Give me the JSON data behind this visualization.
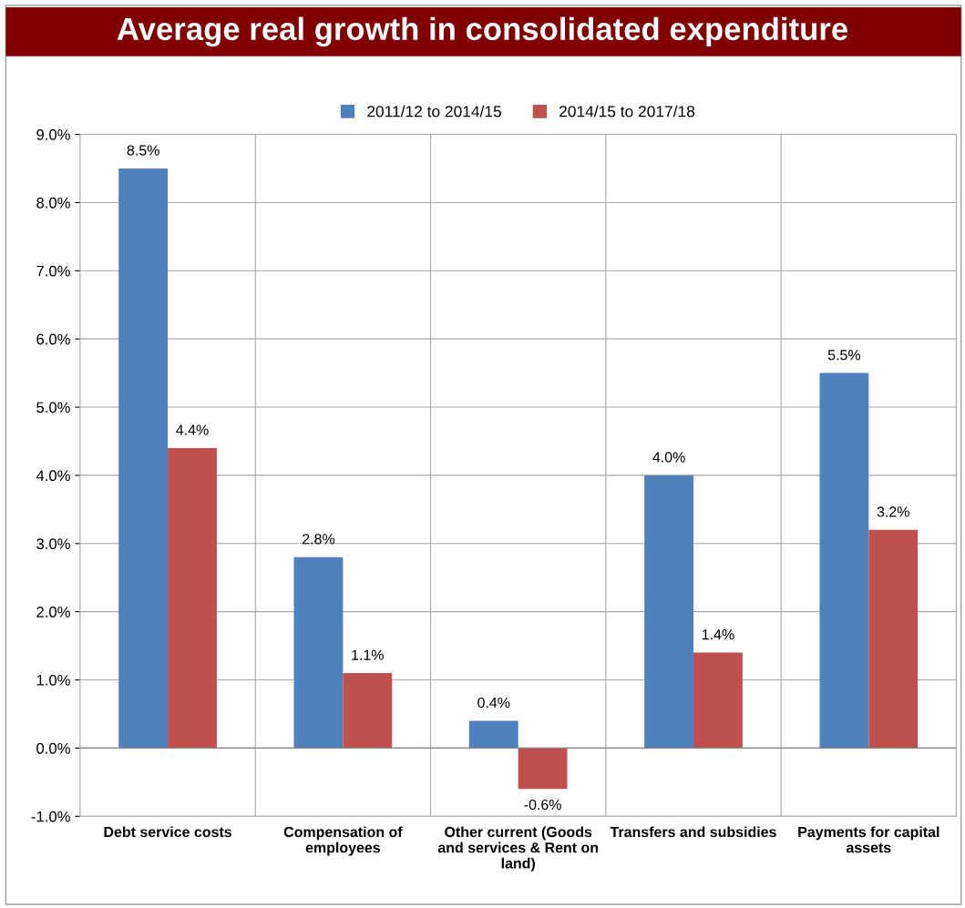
{
  "chart_data": {
    "type": "bar",
    "title": "Average real growth in consolidated expenditure",
    "categories": [
      "Debt service costs",
      "Compensation of\nemployees",
      "Other current (Goods\nand services & Rent on\nland)",
      "Transfers and subsidies",
      "Payments for capital\nassets"
    ],
    "series": [
      {
        "name": "2011/12 to 2014/15",
        "color": "#4f81bd",
        "values": [
          8.5,
          2.8,
          0.4,
          4.0,
          5.5
        ],
        "value_labels": [
          "8.5%",
          "2.8%",
          "0.4%",
          "4.0%",
          "5.5%"
        ]
      },
      {
        "name": "2014/15 to 2017/18",
        "color": "#c0504d",
        "values": [
          4.4,
          1.1,
          -0.6,
          1.4,
          3.2
        ],
        "value_labels": [
          "4.4%",
          "1.1%",
          "-0.6%",
          "1.4%",
          "3.2%"
        ]
      }
    ],
    "ylim": [
      -1,
      9
    ],
    "yticks": [
      {
        "value": -1,
        "label": "-1.0%"
      },
      {
        "value": 0,
        "label": "0.0%"
      },
      {
        "value": 1,
        "label": "1.0%"
      },
      {
        "value": 2,
        "label": "2.0%"
      },
      {
        "value": 3,
        "label": "3.0%"
      },
      {
        "value": 4,
        "label": "4.0%"
      },
      {
        "value": 5,
        "label": "5.0%"
      },
      {
        "value": 6,
        "label": "6.0%"
      },
      {
        "value": 7,
        "label": "7.0%"
      },
      {
        "value": 8,
        "label": "8.0%"
      },
      {
        "value": 9,
        "label": "9.0%"
      }
    ],
    "grid": true,
    "legend": "top"
  }
}
